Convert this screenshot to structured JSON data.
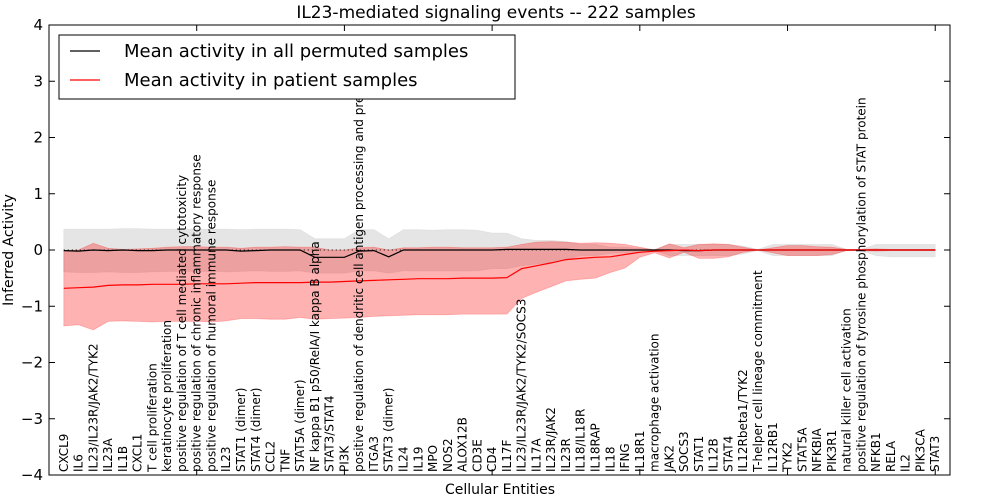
{
  "chart_data": {
    "type": "line",
    "title": "IL23-mediated signaling events -- 222 samples",
    "xlabel": "Cellular Entities",
    "ylabel": "Inferred Activity",
    "ylim": [
      -4,
      4
    ],
    "xlim": [
      0,
      61
    ],
    "yticks": [
      "−4",
      "−3",
      "−2",
      "−1",
      "0",
      "1",
      "2",
      "3",
      "4"
    ],
    "ytick_values": [
      -4,
      -3,
      -2,
      -1,
      0,
      1,
      2,
      3,
      4
    ],
    "xtick_values": [
      0,
      10,
      20,
      30,
      40,
      50,
      60
    ],
    "grid": false,
    "legend_position": "top-left",
    "categories": [
      "CXCL9",
      "IL6",
      "IL23/IL23R/JAK2/TYK2",
      "IL23A",
      "IL1B",
      "CXCL1",
      "T cell proliferation",
      "keratinocyte proliferation",
      "positive regulation of T cell mediated cytotoxicity",
      "positive regulation of chronic inflammatory response",
      "positive regulation of humoral immune response",
      "IL23",
      "STAT1 (dimer)",
      "STAT4 (dimer)",
      "CCL2",
      "TNF",
      "STAT5A (dimer)",
      "NF kappa B1 p50/RelA/I kappa B alpha",
      "STAT3/STAT4",
      "PI3K",
      "positive regulation of dendritic cell antigen processing and presentation",
      "ITGA3",
      "STAT3 (dimer)",
      "IL24",
      "IL19",
      "MPO",
      "NOS2",
      "ALOX12B",
      "CD3E",
      "CD4",
      "IL17F",
      "IL23/IL23R/JAK2/TYK2/SOCS3",
      "IL17A",
      "IL23R/JAK2",
      "IL23R",
      "IL18/IL18R",
      "IL18RAP",
      "IL18",
      "IFNG",
      "IL18R1",
      "macrophage activation",
      "JAK2",
      "SOCS3",
      "STAT1",
      "IL12B",
      "STAT4",
      "IL12Rbeta1/TYK2",
      "T-helper cell lineage commitment",
      "IL12RB1",
      "TYK2",
      "STAT5A",
      "NFKBIA",
      "PIK3R1",
      "natural killer cell activation",
      "positive regulation of tyrosine phosphorylation of STAT protein",
      "NFKB1",
      "RELA",
      "IL2",
      "PIK3CA",
      "STAT3"
    ],
    "series": [
      {
        "name": "Mean activity in all permuted samples",
        "color": "#000000",
        "values": [
          -0.01,
          -0.02,
          0.0,
          -0.01,
          0.0,
          -0.01,
          -0.01,
          0.0,
          0.0,
          0.0,
          0.0,
          0.0,
          -0.02,
          -0.01,
          0.0,
          0.0,
          0.0,
          -0.13,
          -0.13,
          -0.13,
          -0.02,
          -0.01,
          -0.12,
          0.0,
          0.0,
          0.0,
          0.0,
          0.0,
          0.0,
          0.0,
          0.01,
          0.01,
          0.01,
          0.01,
          0.01,
          0.0,
          0.0,
          0.0,
          0.0,
          0.0,
          0.0,
          0.0,
          -0.01,
          -0.01,
          0.0,
          0.0,
          0.0,
          0.0,
          0.0,
          0.0,
          0.0,
          0.0,
          0.0,
          0.0,
          0.0,
          0.0,
          0.0,
          0.0,
          0.0,
          0.0
        ],
        "band_upper": [
          0.37,
          0.37,
          0.37,
          0.37,
          0.38,
          0.38,
          0.37,
          0.37,
          0.37,
          0.37,
          0.37,
          0.37,
          0.36,
          0.37,
          0.37,
          0.37,
          0.36,
          0.2,
          0.2,
          0.2,
          0.36,
          0.36,
          0.2,
          0.36,
          0.36,
          0.35,
          0.36,
          0.36,
          0.35,
          0.3,
          0.3,
          0.2,
          0.17,
          0.17,
          0.15,
          0.1,
          0.1,
          0.05,
          0.05,
          0.03,
          0.01,
          0.1,
          0.1,
          0.1,
          0.1,
          0.1,
          0.07,
          0.01,
          0.1,
          0.1,
          0.1,
          0.1,
          0.1,
          0.01,
          0.01,
          0.1,
          0.1,
          0.1,
          0.1,
          0.1
        ],
        "band_lower": [
          -0.39,
          -0.4,
          -0.4,
          -0.39,
          -0.4,
          -0.4,
          -0.39,
          -0.38,
          -0.38,
          -0.38,
          -0.38,
          -0.39,
          -0.38,
          -0.37,
          -0.38,
          -0.38,
          -0.37,
          -0.41,
          -0.41,
          -0.41,
          -0.37,
          -0.37,
          -0.41,
          -0.37,
          -0.37,
          -0.37,
          -0.37,
          -0.37,
          -0.37,
          -0.33,
          -0.33,
          -0.28,
          -0.25,
          -0.22,
          -0.18,
          -0.1,
          -0.1,
          -0.06,
          -0.05,
          -0.03,
          -0.01,
          -0.1,
          -0.1,
          -0.1,
          -0.1,
          -0.1,
          -0.07,
          -0.01,
          -0.1,
          -0.1,
          -0.1,
          -0.1,
          -0.1,
          -0.01,
          -0.01,
          -0.1,
          -0.12,
          -0.12,
          -0.12,
          -0.12
        ]
      },
      {
        "name": "Mean activity in patient samples",
        "color": "#ff0000",
        "values": [
          -0.68,
          -0.67,
          -0.66,
          -0.63,
          -0.62,
          -0.62,
          -0.61,
          -0.61,
          -0.61,
          -0.6,
          -0.6,
          -0.6,
          -0.59,
          -0.58,
          -0.58,
          -0.58,
          -0.58,
          -0.57,
          -0.57,
          -0.56,
          -0.55,
          -0.54,
          -0.53,
          -0.52,
          -0.51,
          -0.51,
          -0.51,
          -0.5,
          -0.5,
          -0.5,
          -0.49,
          -0.33,
          -0.28,
          -0.23,
          -0.17,
          -0.15,
          -0.13,
          -0.12,
          -0.08,
          -0.04,
          -0.02,
          -0.01,
          0.0,
          -0.01,
          0.0,
          0.0,
          0.0,
          0.0,
          0.0,
          0.0,
          0.0,
          0.0,
          0.0,
          0.0,
          0.0,
          0.0,
          0.0,
          0.0,
          0.0,
          0.0
        ],
        "band_upper": [
          -0.01,
          0.0,
          0.12,
          0.03,
          0.01,
          0.02,
          0.03,
          0.05,
          0.06,
          0.06,
          0.05,
          0.05,
          0.03,
          0.05,
          0.05,
          0.06,
          0.05,
          0.05,
          0.0,
          0.0,
          0.04,
          0.05,
          0.0,
          0.04,
          0.04,
          0.05,
          0.05,
          0.04,
          0.04,
          0.04,
          0.05,
          0.1,
          0.14,
          0.15,
          0.14,
          0.12,
          0.13,
          0.12,
          0.1,
          0.05,
          0.0,
          0.11,
          0.04,
          0.1,
          0.11,
          0.1,
          0.05,
          0.0,
          0.04,
          0.08,
          0.08,
          0.06,
          0.05,
          0.01,
          0.01,
          0.02,
          0.01,
          0.01,
          0.01,
          0.01
        ],
        "band_lower": [
          -1.35,
          -1.33,
          -1.42,
          -1.27,
          -1.26,
          -1.27,
          -1.28,
          -1.27,
          -1.27,
          -1.27,
          -1.28,
          -1.26,
          -1.22,
          -1.22,
          -1.23,
          -1.23,
          -1.2,
          -1.23,
          -1.22,
          -1.21,
          -1.2,
          -1.18,
          -1.17,
          -1.16,
          -1.15,
          -1.15,
          -1.15,
          -1.14,
          -1.14,
          -1.14,
          -1.14,
          -0.86,
          -0.75,
          -0.65,
          -0.55,
          -0.52,
          -0.5,
          -0.4,
          -0.32,
          -0.13,
          -0.05,
          -0.14,
          -0.04,
          -0.15,
          -0.15,
          -0.12,
          -0.04,
          0.0,
          -0.05,
          -0.1,
          -0.1,
          -0.1,
          -0.08,
          -0.01,
          -0.01,
          -0.02,
          -0.01,
          -0.01,
          -0.01,
          -0.01
        ]
      }
    ]
  }
}
